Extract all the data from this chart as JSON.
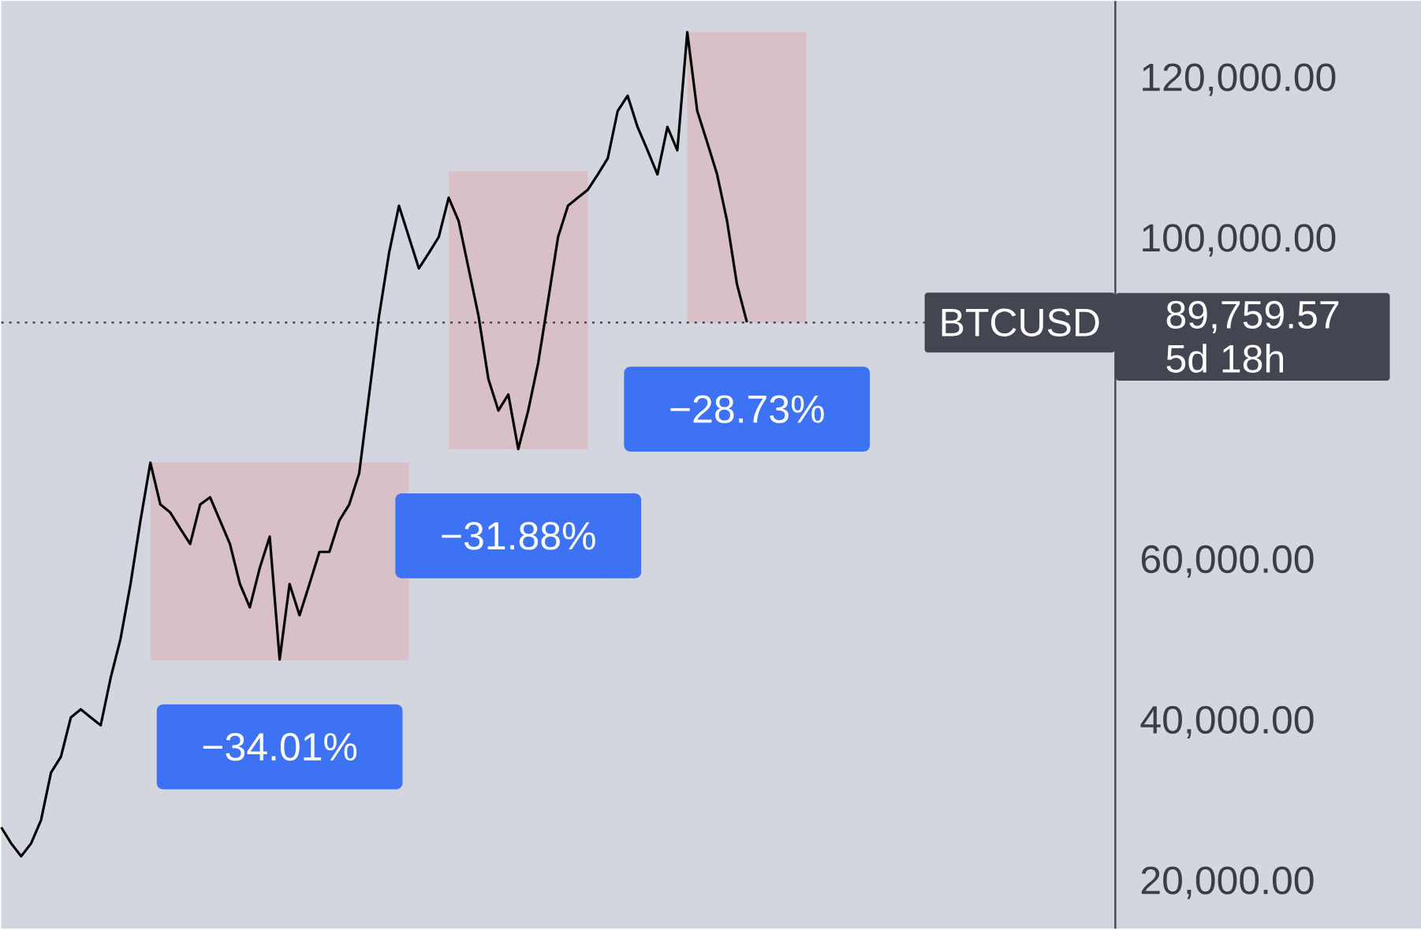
{
  "chart_data": {
    "type": "line",
    "color": "#000000",
    "tick_labels": "y",
    "categories": [
      null,
      null,
      null,
      null,
      null,
      null,
      null,
      null,
      null,
      null,
      null,
      null,
      null,
      null,
      null,
      null,
      null,
      null,
      null,
      null,
      null,
      null,
      null,
      null,
      null,
      null,
      null,
      null,
      null,
      null,
      null,
      null,
      null,
      null,
      null,
      null,
      null,
      null,
      null,
      null,
      null,
      null,
      null,
      null,
      null,
      null,
      null,
      null,
      null,
      null,
      null,
      null,
      null,
      null,
      null,
      null,
      null,
      null,
      null,
      null,
      null,
      null,
      null,
      null,
      null,
      null,
      null,
      null,
      null,
      null,
      null,
      null,
      null,
      null,
      null,
      null
    ],
    "values": [
      26900,
      24900,
      23300,
      24900,
      27800,
      33700,
      35700,
      40600,
      41600,
      40600,
      39600,
      45500,
      50400,
      57200,
      65100,
      72300,
      67100,
      66100,
      64100,
      62200,
      67100,
      68000,
      65100,
      62200,
      57200,
      54300,
      59200,
      63100,
      47800,
      57200,
      53300,
      57200,
      61200,
      61200,
      65100,
      67100,
      71000,
      80800,
      90600,
      98400,
      104300,
      100400,
      96500,
      98400,
      100400,
      105300,
      102400,
      96500,
      90600,
      82700,
      78800,
      80800,
      74000,
      78800,
      84700,
      92500,
      100400,
      104300,
      105300,
      106300,
      108200,
      110200,
      116100,
      118000,
      114100,
      111200,
      108200,
      114100,
      111200,
      125900,
      116100,
      112200,
      108200,
      102400,
      94500,
      89800
    ],
    "ylim": [
      14300,
      129800
    ],
    "yticks": [
      {
        "value": 20000,
        "label": "20,000.00"
      },
      {
        "value": 40000,
        "label": "40,000.00"
      },
      {
        "value": 60000,
        "label": "60,000.00"
      },
      {
        "value": 100000,
        "label": "100,000.00"
      },
      {
        "value": 120000,
        "label": "120,000.00"
      }
    ],
    "ref_lines": [
      {
        "axis": "y",
        "value": 89759.57,
        "label": "BTCUSD",
        "line_style": "dotted",
        "color": "#434651"
      }
    ],
    "bands": [
      {
        "axis": "y",
        "from": 47710,
        "to": 72300,
        "label": "−34.01%",
        "color": "#d9bfc6"
      },
      {
        "axis": "y",
        "from": 73980,
        "to": 108600,
        "label": "−31.88%",
        "color": "#d9bfc6"
      },
      {
        "axis": "y",
        "from": 89760,
        "to": 125950,
        "label": "−28.73%",
        "color": "#d9bfc6"
      }
    ],
    "annotations": [
      "89,759.57",
      "5d 18h"
    ]
  }
}
